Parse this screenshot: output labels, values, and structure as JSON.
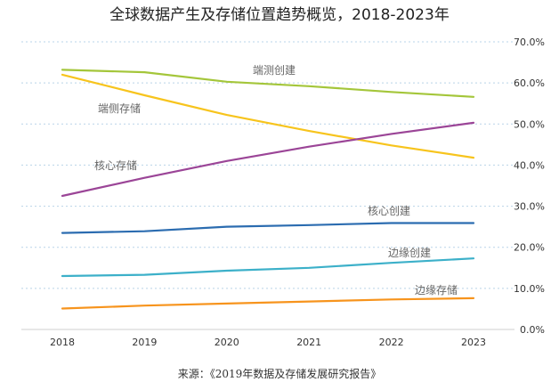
{
  "chart_data": {
    "type": "line",
    "title": "全球数据产生及存储位置趋势概览，2018-2023年",
    "categories": [
      "2018",
      "2019",
      "2020",
      "2021",
      "2022",
      "2023"
    ],
    "y_ticks": [
      "0.0%",
      "10.0%",
      "20.0%",
      "30.0%",
      "40.0%",
      "50.0%",
      "60.0%",
      "70.0%"
    ],
    "ylim": [
      0,
      70
    ],
    "y_axis_position": "right",
    "grid": true,
    "series": [
      {
        "name": "端测创建",
        "color": "#a4c63a",
        "values": [
          63.2,
          62.6,
          60.3,
          59.2,
          57.8,
          56.6
        ]
      },
      {
        "name": "端侧存储",
        "color": "#f7c41d",
        "values": [
          62.0,
          57.0,
          52.2,
          48.3,
          44.8,
          41.8
        ]
      },
      {
        "name": "核心存储",
        "color": "#9b4597",
        "values": [
          32.5,
          36.9,
          41.0,
          44.5,
          47.6,
          50.3
        ]
      },
      {
        "name": "核心创建",
        "color": "#2b6cb0",
        "values": [
          23.5,
          23.9,
          25.0,
          25.4,
          25.9,
          25.9
        ]
      },
      {
        "name": "边缘创建",
        "color": "#3cb0c9",
        "values": [
          13.0,
          13.3,
          14.3,
          15.0,
          16.2,
          17.3
        ]
      },
      {
        "name": "边缘存储",
        "color": "#f7941d",
        "values": [
          5.1,
          5.8,
          6.3,
          6.8,
          7.3,
          7.6
        ]
      }
    ]
  },
  "source": "来源：《2019年数据及存储发展研究报告》"
}
